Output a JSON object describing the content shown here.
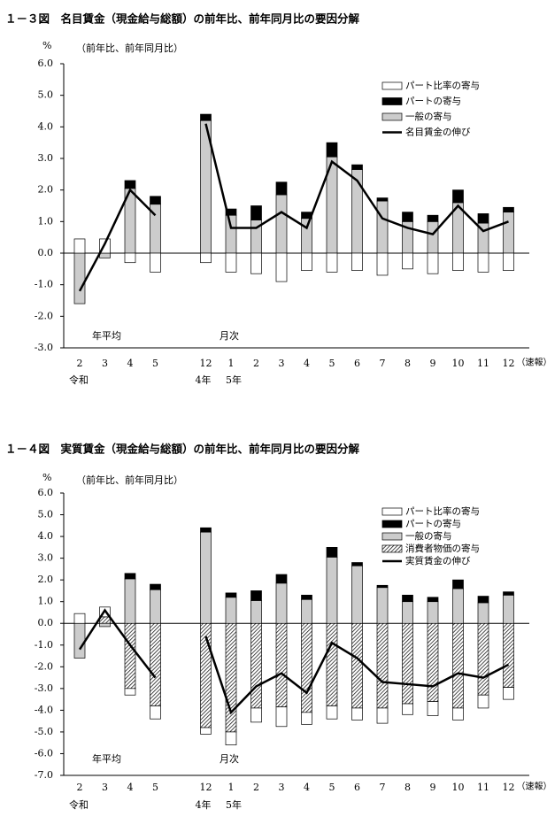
{
  "chart_data": [
    {
      "type": "bar",
      "title": "１－３図　名目賃金（現金給与総額）の前年比、前年同月比の要因分解",
      "y_unit": "%",
      "subtitle": "（前年比、前年同月比）",
      "categories": [
        "2",
        "3",
        "4",
        "5",
        "12",
        "1",
        "2",
        "3",
        "4",
        "5",
        "6",
        "7",
        "8",
        "9",
        "10",
        "11",
        "12"
      ],
      "era_label": "令和",
      "year_labels": [
        "4年",
        "5年"
      ],
      "section_labels": [
        "年平均",
        "月次"
      ],
      "last_note": "（速報）",
      "ylim": [
        -3,
        6
      ],
      "yticks": [
        {
          "value": -3,
          "label": "-3.0"
        },
        {
          "value": -2,
          "label": "-2.0"
        },
        {
          "value": -1,
          "label": "-1.0"
        },
        {
          "value": 0,
          "label": "0.0"
        },
        {
          "value": 1,
          "label": "1.0"
        },
        {
          "value": 2,
          "label": "2.0"
        },
        {
          "value": 3,
          "label": "3.0"
        },
        {
          "value": 4,
          "label": "4.0"
        },
        {
          "value": 5,
          "label": "5.0"
        },
        {
          "value": 6,
          "label": "6.0"
        }
      ],
      "series": [
        {
          "name": "パート比率の寄与",
          "type": "bar",
          "color": "#ffffff",
          "values": [
            0.45,
            0.45,
            -0.3,
            -0.6,
            -0.3,
            -0.6,
            -0.65,
            -0.9,
            -0.55,
            -0.6,
            -0.55,
            -0.7,
            -0.5,
            -0.65,
            -0.55,
            -0.6,
            -0.55
          ]
        },
        {
          "name": "パートの寄与",
          "type": "bar",
          "color": "#000000",
          "values": [
            0,
            0,
            0.25,
            0.25,
            0.2,
            0.2,
            0.45,
            0.4,
            0.2,
            0.45,
            0.15,
            0.1,
            0.3,
            0.2,
            0.4,
            0.3,
            0.15
          ]
        },
        {
          "name": "一般の寄与",
          "type": "bar",
          "color": "#cccccc",
          "values": [
            -1.6,
            -0.15,
            2.05,
            1.55,
            4.2,
            1.2,
            1.05,
            1.85,
            1.1,
            3.05,
            2.65,
            1.65,
            1.0,
            1.0,
            1.6,
            0.95,
            1.3
          ]
        },
        {
          "name": "名目賃金の伸び",
          "type": "line",
          "color": "#000000",
          "values": [
            -1.2,
            0.3,
            2.0,
            1.2,
            4.1,
            0.8,
            0.8,
            1.3,
            0.8,
            2.9,
            2.3,
            1.1,
            0.8,
            0.6,
            1.5,
            0.7,
            1.0
          ]
        }
      ]
    },
    {
      "type": "bar",
      "title": "１－４図　実質賃金（現金給与総額）の前年比、前年同月比の要因分解",
      "y_unit": "%",
      "subtitle": "（前年比、前年同月比）",
      "categories": [
        "2",
        "3",
        "4",
        "5",
        "12",
        "1",
        "2",
        "3",
        "4",
        "5",
        "6",
        "7",
        "8",
        "9",
        "10",
        "11",
        "12"
      ],
      "era_label": "令和",
      "year_labels": [
        "4年",
        "5年"
      ],
      "section_labels": [
        "年平均",
        "月次"
      ],
      "last_note": "（速報）",
      "ylim": [
        -7,
        6
      ],
      "yticks": [
        {
          "value": -7,
          "label": "-7.0"
        },
        {
          "value": -6,
          "label": "-6.0"
        },
        {
          "value": -5,
          "label": "-5.0"
        },
        {
          "value": -4,
          "label": "-4.0"
        },
        {
          "value": -3,
          "label": "-3.0"
        },
        {
          "value": -2,
          "label": "-2.0"
        },
        {
          "value": -1,
          "label": "-1.0"
        },
        {
          "value": 0,
          "label": "0.0"
        },
        {
          "value": 1,
          "label": "1.0"
        },
        {
          "value": 2,
          "label": "2.0"
        },
        {
          "value": 3,
          "label": "3.0"
        },
        {
          "value": 4,
          "label": "4.0"
        },
        {
          "value": 5,
          "label": "5.0"
        },
        {
          "value": 6,
          "label": "6.0"
        }
      ],
      "series": [
        {
          "name": "パート比率の寄与",
          "type": "bar",
          "color": "#ffffff",
          "values": [
            0.45,
            0.45,
            -0.3,
            -0.6,
            -0.3,
            -0.6,
            -0.65,
            -0.9,
            -0.55,
            -0.6,
            -0.55,
            -0.7,
            -0.5,
            -0.65,
            -0.55,
            -0.6,
            -0.55
          ]
        },
        {
          "name": "パートの寄与",
          "type": "bar",
          "color": "#000000",
          "values": [
            0,
            0,
            0.25,
            0.25,
            0.2,
            0.2,
            0.45,
            0.4,
            0.2,
            0.45,
            0.15,
            0.1,
            0.3,
            0.2,
            0.4,
            0.3,
            0.15
          ]
        },
        {
          "name": "一般の寄与",
          "type": "bar",
          "color": "#cccccc",
          "values": [
            -1.6,
            -0.15,
            2.05,
            1.55,
            4.2,
            1.2,
            1.05,
            1.85,
            1.1,
            3.05,
            2.65,
            1.65,
            1.0,
            1.0,
            1.6,
            0.95,
            1.3
          ]
        },
        {
          "name": "消費者物価の寄与",
          "type": "bar",
          "color": "#000000",
          "pattern": "diagonal",
          "values": [
            0,
            0.3,
            -3.0,
            -3.8,
            -4.8,
            -5.0,
            -3.9,
            -3.85,
            -4.1,
            -3.8,
            -3.9,
            -3.9,
            -3.7,
            -3.6,
            -3.9,
            -3.3,
            -2.95
          ]
        },
        {
          "name": "実質賃金の伸び",
          "type": "line",
          "color": "#000000",
          "values": [
            -1.2,
            0.6,
            -1.0,
            -2.5,
            -0.6,
            -4.1,
            -2.9,
            -2.3,
            -3.2,
            -0.9,
            -1.6,
            -2.7,
            -2.8,
            -2.9,
            -2.3,
            -2.5,
            -1.9
          ]
        }
      ]
    }
  ]
}
